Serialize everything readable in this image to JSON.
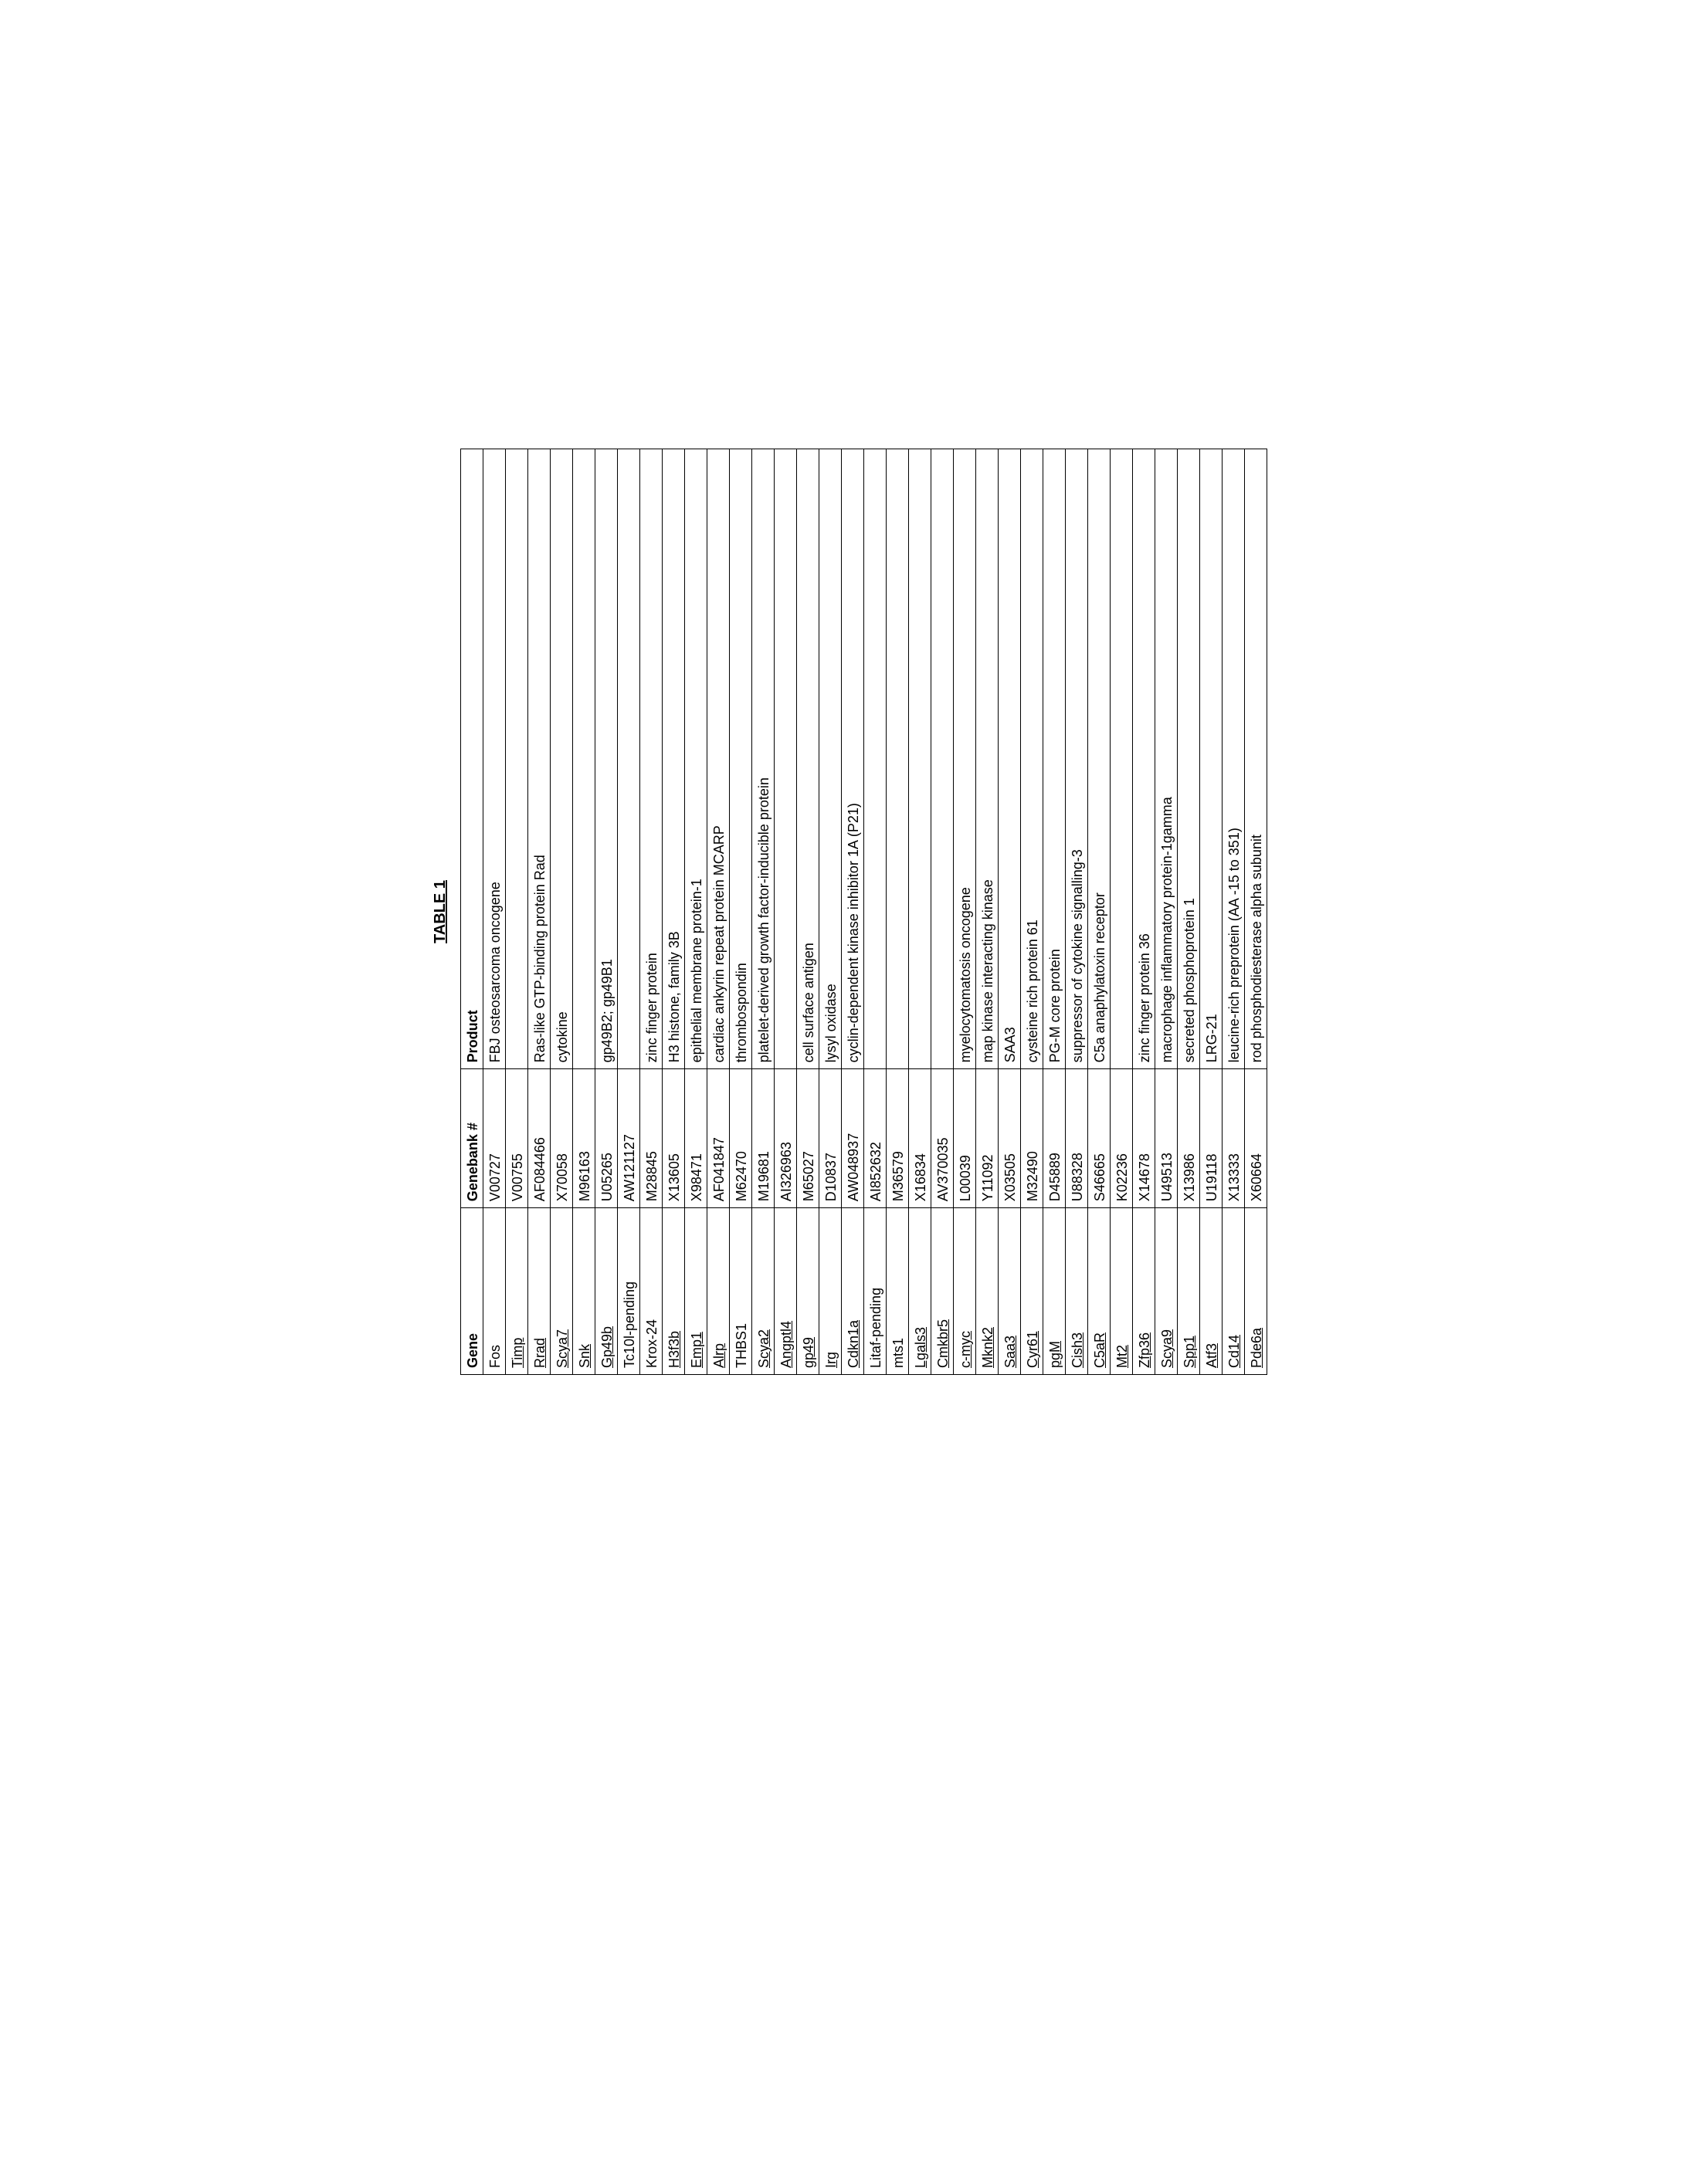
{
  "title": "TABLE 1",
  "headers": {
    "gene": "Gene",
    "genebank": "Genebank #",
    "product": "Product"
  },
  "rows": [
    {
      "gene": "Fos",
      "gb": "V00727",
      "product": "FBJ osteosarcoma oncogene",
      "u": false
    },
    {
      "gene": "Timp",
      "gb": "V00755",
      "product": "",
      "u": true
    },
    {
      "gene": "Rrad",
      "gb": "AF084466",
      "product": "Ras-like GTP-binding protein Rad",
      "u": true
    },
    {
      "gene": "Scya7",
      "gb": "X70058",
      "product": "cytokine",
      "u": true
    },
    {
      "gene": "Snk",
      "gb": "M96163",
      "product": "",
      "u": true
    },
    {
      "gene": "Gp49b",
      "gb": "U05265",
      "product": "gp49B2; gp49B1",
      "u": true
    },
    {
      "gene": "Tc10l-pending",
      "gb": "AW121127",
      "product": "",
      "u": false
    },
    {
      "gene": "Krox-24",
      "gb": "M28845",
      "product": "zinc finger protein",
      "u": false
    },
    {
      "gene": "H3f3b",
      "gb": "X13605",
      "product": "H3 histone, family 3B",
      "u": true
    },
    {
      "gene": "Emp1",
      "gb": "X98471",
      "product": "epithelial membrane protein-1",
      "u": true
    },
    {
      "gene": "Alrp",
      "gb": "AF041847",
      "product": "cardiac ankyrin repeat protein MCARP",
      "u": true
    },
    {
      "gene": "THBS1",
      "gb": "M62470",
      "product": "thrombospondin",
      "u": false
    },
    {
      "gene": "Scya2",
      "gb": "M19681",
      "product": "platelet-derived growth factor-inducible protein",
      "u": true
    },
    {
      "gene": "Angptl4",
      "gb": "AI326963",
      "product": "",
      "u": true
    },
    {
      "gene": "gp49",
      "gb": "M65027",
      "product": "cell surface antigen",
      "u": true
    },
    {
      "gene": "Irg",
      "gb": "D10837",
      "product": "lysyl oxidase",
      "u": true
    },
    {
      "gene": "Cdkn1a",
      "gb": "AW048937",
      "product": "cyclin-dependent kinase inhibitor 1A (P21)",
      "u": true
    },
    {
      "gene": "Litaf-pending",
      "gb": "AI852632",
      "product": "",
      "u": false
    },
    {
      "gene": "mts1",
      "gb": "M36579",
      "product": "",
      "u": false
    },
    {
      "gene": "Lgals3",
      "gb": "X16834",
      "product": "",
      "u": true
    },
    {
      "gene": "Cmkbr5",
      "gb": "AV370035",
      "product": "",
      "u": true
    },
    {
      "gene": "c-myc",
      "gb": "L00039",
      "product": "myelocytomatosis oncogene",
      "u": true
    },
    {
      "gene": "Mknk2",
      "gb": "Y11092",
      "product": "map kinase interacting kinase",
      "u": true
    },
    {
      "gene": "Saa3",
      "gb": "X03505",
      "product": "SAA3",
      "u": true
    },
    {
      "gene": "Cyr61",
      "gb": "M32490",
      "product": "cysteine rich protein 61",
      "u": true
    },
    {
      "gene": "pgM",
      "gb": "D45889",
      "product": "PG-M core protein",
      "u": true
    },
    {
      "gene": "Cish3",
      "gb": "U88328",
      "product": "suppressor of cytokine signalling-3",
      "u": true
    },
    {
      "gene": "C5aR",
      "gb": "S46665",
      "product": "C5a anaphylatoxin receptor",
      "u": true
    },
    {
      "gene": "Mt2",
      "gb": "K02236",
      "product": "",
      "u": true
    },
    {
      "gene": "Zfp36",
      "gb": "X14678",
      "product": "zinc finger protein 36",
      "u": true
    },
    {
      "gene": "Scya9",
      "gb": "U49513",
      "product": "macrophage inflammatory protein-1gamma",
      "u": true
    },
    {
      "gene": "Spp1",
      "gb": "X13986",
      "product": "secreted phosphoprotein 1",
      "u": true
    },
    {
      "gene": "Atf3",
      "gb": "U19118",
      "product": "LRG-21",
      "u": true
    },
    {
      "gene": "Cd14",
      "gb": "X13333",
      "product": "leucine-rich preprotein (AA -15 to 351)",
      "u": true
    },
    {
      "gene": "Pde6a",
      "gb": "X60664",
      "product": "rod phosphodiesterase  alpha subunit",
      "u": true
    }
  ]
}
